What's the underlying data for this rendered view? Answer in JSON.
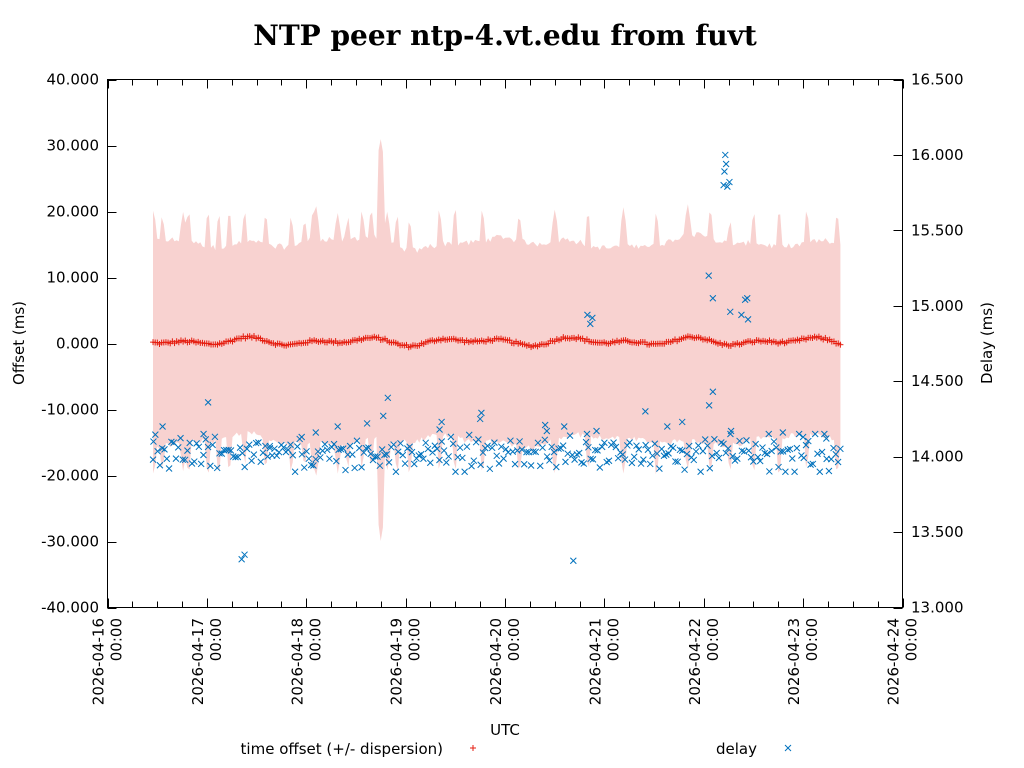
{
  "chart_data": {
    "type": "scatter",
    "title": "NTP peer ntp-4.vt.edu from fuvt",
    "xlabel": "UTC",
    "ylabel": "Offset (ms)",
    "y2label": "Delay (ms)",
    "x_unit": "hours since 2026-04-16 00:00 UTC",
    "xlim_hours": [
      0,
      192
    ],
    "ylim": [
      -40,
      40
    ],
    "y2lim": [
      13.0,
      16.5
    ],
    "x_ticks": [
      {
        "date": "2026-04-16",
        "time": "00:00",
        "hours": 0
      },
      {
        "date": "2026-04-17",
        "time": "00:00",
        "hours": 24
      },
      {
        "date": "2026-04-18",
        "time": "00:00",
        "hours": 48
      },
      {
        "date": "2026-04-19",
        "time": "00:00",
        "hours": 72
      },
      {
        "date": "2026-04-20",
        "time": "00:00",
        "hours": 96
      },
      {
        "date": "2026-04-21",
        "time": "00:00",
        "hours": 120
      },
      {
        "date": "2026-04-22",
        "time": "00:00",
        "hours": 144
      },
      {
        "date": "2026-04-23",
        "time": "00:00",
        "hours": 168
      },
      {
        "date": "2026-04-24",
        "time": "00:00",
        "hours": 192
      }
    ],
    "y_ticks": [
      {
        "value": 40,
        "label": "40.000"
      },
      {
        "value": 30,
        "label": "30.000"
      },
      {
        "value": 20,
        "label": "20.000"
      },
      {
        "value": 10,
        "label": "10.000"
      },
      {
        "value": 0,
        "label": "0.000"
      },
      {
        "value": -10,
        "label": "-10.000"
      },
      {
        "value": -20,
        "label": "-20.000"
      },
      {
        "value": -30,
        "label": "-30.000"
      },
      {
        "value": -40,
        "label": "-40.000"
      }
    ],
    "y2_ticks": [
      {
        "value": 16.5,
        "label": "16.500"
      },
      {
        "value": 16.0,
        "label": "16.000"
      },
      {
        "value": 15.5,
        "label": "15.500"
      },
      {
        "value": 15.0,
        "label": "15.000"
      },
      {
        "value": 14.5,
        "label": "14.500"
      },
      {
        "value": 14.0,
        "label": "14.000"
      },
      {
        "value": 13.5,
        "label": "13.500"
      },
      {
        "value": 13.0,
        "label": "13.000"
      }
    ],
    "data_range_hours": [
      11.0,
      177.0
    ],
    "offset_series": {
      "name": "time offset (+/- dispersion)",
      "marker": "+",
      "color": "#e51e10",
      "band_color": "#f8d2d0",
      "offset_baseline_ms": 0.3,
      "offset_oscillation_ms": 0.7,
      "dispersion_baseline_ms": 15.0,
      "dispersion_spikes": [
        {
          "hours": 11.1,
          "value": 20.3
        },
        {
          "hours": 13.2,
          "value": 19.5
        },
        {
          "hours": 18.3,
          "value": 19.8
        },
        {
          "hours": 19.6,
          "value": 20.2
        },
        {
          "hours": 24.3,
          "value": 20.3
        },
        {
          "hours": 26.9,
          "value": 20.0
        },
        {
          "hours": 29.4,
          "value": 20.0
        },
        {
          "hours": 33.2,
          "value": 19.4
        },
        {
          "hours": 38.2,
          "value": 19.6
        },
        {
          "hours": 44.3,
          "value": 19.6
        },
        {
          "hours": 47.6,
          "value": 19.0
        },
        {
          "hours": 49.7,
          "value": 20.3
        },
        {
          "hours": 50.4,
          "value": 20.5
        },
        {
          "hours": 55.6,
          "value": 19.8
        },
        {
          "hours": 58.1,
          "value": 19.3
        },
        {
          "hours": 61.4,
          "value": 19.8
        },
        {
          "hours": 63.7,
          "value": 19.8
        },
        {
          "hours": 67.6,
          "value": 19.8
        },
        {
          "hours": 70.0,
          "value": 19.8
        },
        {
          "hours": 66.0,
          "value": 30.5
        },
        {
          "hours": 72.9,
          "value": 19.6
        },
        {
          "hours": 80.1,
          "value": 20.0
        },
        {
          "hours": 84.0,
          "value": 20.2
        },
        {
          "hours": 90.5,
          "value": 20.2
        },
        {
          "hours": 99.4,
          "value": 19.8
        },
        {
          "hours": 108.0,
          "value": 20.0
        },
        {
          "hours": 116.1,
          "value": 19.8
        },
        {
          "hours": 124.6,
          "value": 20.2
        },
        {
          "hours": 132.5,
          "value": 20.2
        },
        {
          "hours": 140.1,
          "value": 20.3
        },
        {
          "hours": 145.6,
          "value": 20.2
        },
        {
          "hours": 150.4,
          "value": 19.3
        },
        {
          "hours": 156.1,
          "value": 20.0
        },
        {
          "hours": 162.2,
          "value": 20.5
        },
        {
          "hours": 168.8,
          "value": 19.8
        },
        {
          "hours": 176.2,
          "value": 20.0
        }
      ]
    },
    "delay_series": {
      "name": "delay",
      "marker": "x",
      "color": "#0072bd",
      "cluster_range_ms": [
        13.9,
        14.15
      ],
      "outliers": [
        {
          "hours": 11.1,
          "value": 14.1
        },
        {
          "hours": 13.3,
          "value": 14.2
        },
        {
          "hours": 24.3,
          "value": 14.36
        },
        {
          "hours": 23.2,
          "value": 14.15
        },
        {
          "hours": 32.4,
          "value": 13.32
        },
        {
          "hours": 33.1,
          "value": 13.35
        },
        {
          "hours": 39.2,
          "value": 14.07
        },
        {
          "hours": 46.9,
          "value": 14.13
        },
        {
          "hours": 50.3,
          "value": 14.16
        },
        {
          "hours": 55.6,
          "value": 14.2
        },
        {
          "hours": 62.7,
          "value": 14.22
        },
        {
          "hours": 66.6,
          "value": 14.27
        },
        {
          "hours": 67.7,
          "value": 14.39
        },
        {
          "hours": 80.7,
          "value": 14.23
        },
        {
          "hours": 80.2,
          "value": 14.18
        },
        {
          "hours": 90.3,
          "value": 14.29
        },
        {
          "hours": 90.0,
          "value": 14.25
        },
        {
          "hours": 105.7,
          "value": 14.21
        },
        {
          "hours": 106.1,
          "value": 14.17
        },
        {
          "hours": 110.3,
          "value": 14.2
        },
        {
          "hours": 112.5,
          "value": 13.31
        },
        {
          "hours": 115.8,
          "value": 14.15
        },
        {
          "hours": 115.9,
          "value": 14.94
        },
        {
          "hours": 116.6,
          "value": 14.88
        },
        {
          "hours": 117.1,
          "value": 14.92
        },
        {
          "hours": 118.1,
          "value": 14.17
        },
        {
          "hours": 129.9,
          "value": 14.3
        },
        {
          "hours": 135.2,
          "value": 14.2
        },
        {
          "hours": 138.8,
          "value": 14.23
        },
        {
          "hours": 145.2,
          "value": 15.2
        },
        {
          "hours": 146.2,
          "value": 15.05
        },
        {
          "hours": 145.3,
          "value": 14.34
        },
        {
          "hours": 146.2,
          "value": 14.43
        },
        {
          "hours": 148.8,
          "value": 15.8
        },
        {
          "hours": 149.0,
          "value": 15.89
        },
        {
          "hours": 149.2,
          "value": 16.0
        },
        {
          "hours": 149.4,
          "value": 15.94
        },
        {
          "hours": 149.7,
          "value": 15.79
        },
        {
          "hours": 150.2,
          "value": 15.82
        },
        {
          "hours": 150.4,
          "value": 14.96
        },
        {
          "hours": 150.6,
          "value": 14.17
        },
        {
          "hours": 153.1,
          "value": 14.94
        },
        {
          "hours": 154.0,
          "value": 15.04
        },
        {
          "hours": 154.5,
          "value": 15.05
        },
        {
          "hours": 154.7,
          "value": 14.91
        },
        {
          "hours": 159.7,
          "value": 14.15
        },
        {
          "hours": 163.1,
          "value": 14.16
        },
        {
          "hours": 168.0,
          "value": 14.13
        },
        {
          "hours": 173.6,
          "value": 14.12
        }
      ]
    },
    "legend": {
      "placement": "bottom",
      "entries": [
        {
          "label": "time offset (+/- dispersion)",
          "marker": "+",
          "color": "#e51e10"
        },
        {
          "label": "delay",
          "marker": "x",
          "color": "#0072bd"
        }
      ]
    },
    "grid": false
  }
}
